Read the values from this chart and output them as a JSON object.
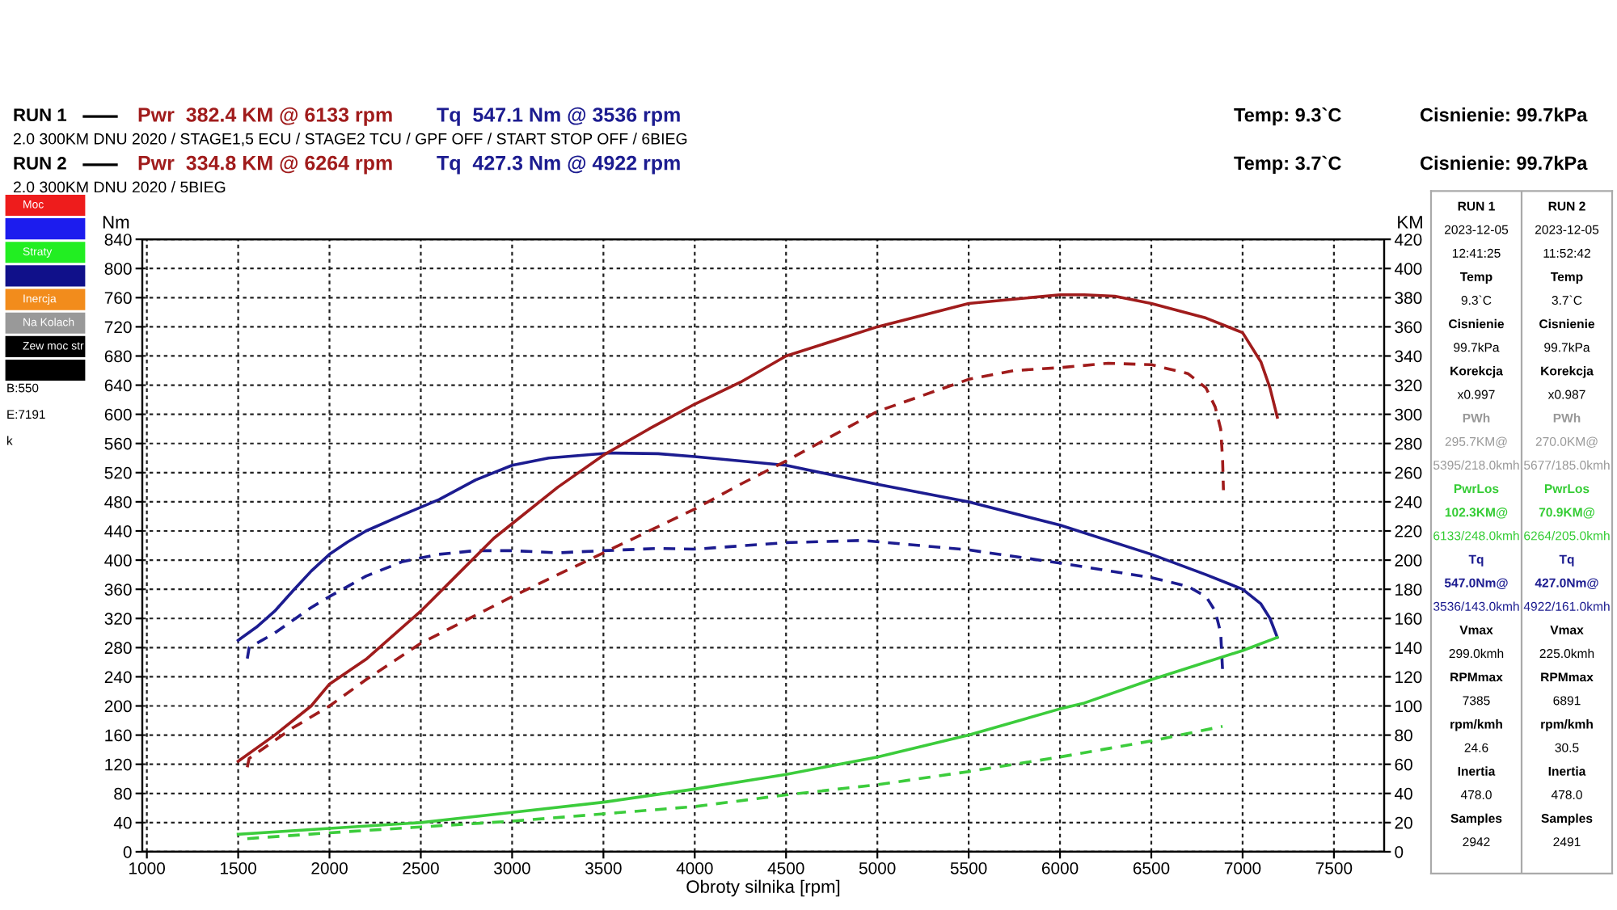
{
  "chart_data": [
    {
      "type": "line",
      "xlabel": "Obroty silnika [rpm]",
      "ylabel": "Nm",
      "y2label": "KM",
      "annotations": [
        "RUN 1",
        "Pwr  382.4 KM @ 6133 rpm",
        "Tq  547.1 Nm @ 3536 rpm",
        "2.0 300KM DNU 2020 / STAGE1,5 ECU / STAGE2 TCU / GPF OFF / START STOP OFF / 6BIEG",
        "Temp: 9.3`C",
        "Cisnienie: 99.7kPa",
        "RUN 2",
        "Pwr  334.8 KM @ 6264 rpm",
        "Tq  427.3 Nm @ 4922 rpm",
        "2.0 300KM DNU 2020 / 5BIEG",
        "Temp: 3.7`C",
        "Cisnienie: 99.7kPa"
      ],
      "xlim": [
        975,
        7775
      ],
      "xticks": [
        1000,
        1500,
        2000,
        2500,
        3000,
        3500,
        4000,
        4500,
        5000,
        5500,
        6000,
        6500,
        7000,
        7500
      ],
      "ylim": [
        0,
        840
      ],
      "yticks": [
        0,
        40,
        80,
        120,
        160,
        200,
        240,
        280,
        320,
        360,
        400,
        440,
        480,
        520,
        560,
        600,
        640,
        680,
        720,
        760,
        800,
        840
      ],
      "y2lim": [
        0,
        420
      ],
      "y2ticks": [
        0,
        20,
        40,
        60,
        80,
        100,
        120,
        140,
        160,
        180,
        200,
        220,
        240,
        260,
        280,
        300,
        320,
        340,
        360,
        380,
        400,
        420
      ],
      "grid": true,
      "marker": "none",
      "series": [
        {
          "axis": "y2",
          "color": "#a01c1c",
          "line_style": "solid",
          "x": [
            1500,
            1700,
            1900,
            2000,
            2200,
            2500,
            2700,
            2900,
            3000,
            3250,
            3500,
            3750,
            4000,
            4250,
            4500,
            5000,
            5500,
            6000,
            6133,
            6300,
            6500,
            6800,
            7000,
            7100,
            7150,
            7190
          ],
          "values": [
            62,
            80,
            100,
            115,
            132,
            165,
            190,
            215,
            225,
            250,
            272,
            290,
            307,
            322,
            340,
            360,
            376,
            382,
            382,
            381,
            376,
            366,
            356,
            336,
            318,
            298
          ]
        },
        {
          "axis": "y2",
          "color": "#a01c1c",
          "line_style": "dashed",
          "x": [
            1550,
            1560,
            1800,
            2000,
            2200,
            2500,
            3000,
            3500,
            3750,
            4000,
            4250,
            4500,
            5000,
            5500,
            5750,
            6000,
            6264,
            6500,
            6700,
            6800,
            6850,
            6880,
            6890,
            6895
          ],
          "values": [
            58,
            64,
            85,
            100,
            118,
            143,
            175,
            205,
            220,
            235,
            252,
            268,
            302,
            324,
            330,
            332,
            335,
            334,
            328,
            318,
            305,
            290,
            270,
            248
          ]
        },
        {
          "axis": "y",
          "color": "#1c1c90",
          "line_style": "solid",
          "x": [
            1500,
            1600,
            1700,
            1800,
            1900,
            2000,
            2100,
            2200,
            2400,
            2600,
            2800,
            3000,
            3200,
            3536,
            3800,
            4000,
            4500,
            5000,
            5500,
            6000,
            6500,
            6800,
            7000,
            7100,
            7150,
            7190
          ],
          "values": [
            290,
            308,
            330,
            358,
            385,
            408,
            425,
            440,
            462,
            483,
            510,
            530,
            540,
            547,
            546,
            542,
            530,
            504,
            480,
            448,
            408,
            380,
            360,
            340,
            320,
            294
          ]
        },
        {
          "axis": "y",
          "color": "#1c1c90",
          "line_style": "dashed",
          "x": [
            1550,
            1560,
            1700,
            1900,
            2000,
            2200,
            2400,
            2600,
            2800,
            3000,
            3250,
            3500,
            3800,
            4000,
            4500,
            4922,
            5500,
            6000,
            6500,
            6700,
            6800,
            6850,
            6880,
            6890
          ],
          "values": [
            265,
            280,
            300,
            335,
            350,
            378,
            398,
            408,
            413,
            413,
            410,
            413,
            416,
            415,
            424,
            427,
            414,
            396,
            376,
            364,
            350,
            330,
            300,
            250
          ]
        },
        {
          "axis": "y2",
          "color": "#3ccc3c",
          "line_style": "solid",
          "x": [
            1500,
            2000,
            2500,
            3000,
            3500,
            4000,
            4500,
            5000,
            5500,
            6000,
            6133,
            6500,
            7000,
            7190
          ],
          "values": [
            12,
            16,
            20,
            27,
            34,
            43,
            53,
            65,
            80,
            98,
            102,
            118,
            138,
            147
          ]
        },
        {
          "axis": "y2",
          "color": "#3ccc3c",
          "line_style": "dashed",
          "x": [
            1550,
            2000,
            2500,
            3000,
            3500,
            4000,
            4500,
            5000,
            5500,
            6000,
            6500,
            6890
          ],
          "values": [
            9,
            13,
            17,
            21,
            26,
            31,
            39,
            46,
            55,
            65,
            76,
            86
          ]
        }
      ]
    },
    {
      "type": "other",
      "annotations": [
        "RUN 1",
        "2023-12-05",
        "12:41:25",
        "Temp",
        "9.3`C",
        "Cisnienie",
        "99.7kPa",
        "Korekcja",
        "x0.997",
        "PWh",
        "295.7KM@",
        "5395/218.0kmh",
        "PwrLos",
        "102.3KM@",
        "6133/248.0kmh",
        "Tq",
        "547.0Nm@",
        "3536/143.0kmh",
        "Vmax",
        "299.0kmh",
        "RPMmax",
        "7385",
        "rpm/kmh",
        "24.6",
        "Inertia",
        "478.0",
        "Samples",
        "2942",
        "RUN 2",
        "2023-12-05",
        "11:52:42",
        "Temp",
        "3.7`C",
        "Cisnienie",
        "99.7kPa",
        "Korekcja",
        "x0.987",
        "PWh",
        "270.0KM@",
        "5677/185.0kmh",
        "PwrLos",
        "70.9KM@",
        "6264/205.0kmh",
        "Tq",
        "427.0Nm@",
        "4922/161.0kmh",
        "Vmax",
        "225.0kmh",
        "RPMmax",
        "6891",
        "rpm/kmh",
        "30.5",
        "Inertia",
        "478.0",
        "Samples",
        "2491"
      ],
      "colors": [
        "#000000",
        "#000000",
        "#000000",
        "#000000",
        "#000000",
        "#000000",
        "#000000",
        "#000000",
        "#000000",
        "#999999",
        "#999999",
        "#999999",
        "#33cc33",
        "#33cc33",
        "#33cc33",
        "#1c1c90",
        "#1c1c90",
        "#1c1c90",
        "#000000",
        "#000000",
        "#000000",
        "#000000",
        "#000000",
        "#000000",
        "#000000",
        "#000000",
        "#000000",
        "#000000",
        "#000000",
        "#000000",
        "#000000",
        "#000000",
        "#000000",
        "#000000",
        "#000000",
        "#000000",
        "#000000",
        "#999999",
        "#999999",
        "#999999",
        "#33cc33",
        "#33cc33",
        "#33cc33",
        "#1c1c90",
        "#1c1c90",
        "#1c1c90",
        "#000000",
        "#000000",
        "#000000",
        "#000000",
        "#000000",
        "#000000",
        "#000000",
        "#000000",
        "#000000",
        "#000000"
      ]
    },
    {
      "type": "other",
      "categories": [
        "Moc",
        null,
        "Straty",
        null,
        "Inercja",
        "Na Kolach",
        "Zew moc str",
        null
      ],
      "colors": [
        "#ee1c1c",
        "#1c1cee",
        "#22ee22",
        "#10108a",
        "#f28c1c",
        "#999999",
        "#000000",
        "#000000"
      ],
      "annotations": [
        "B:550",
        "E:7191",
        "k"
      ]
    }
  ]
}
